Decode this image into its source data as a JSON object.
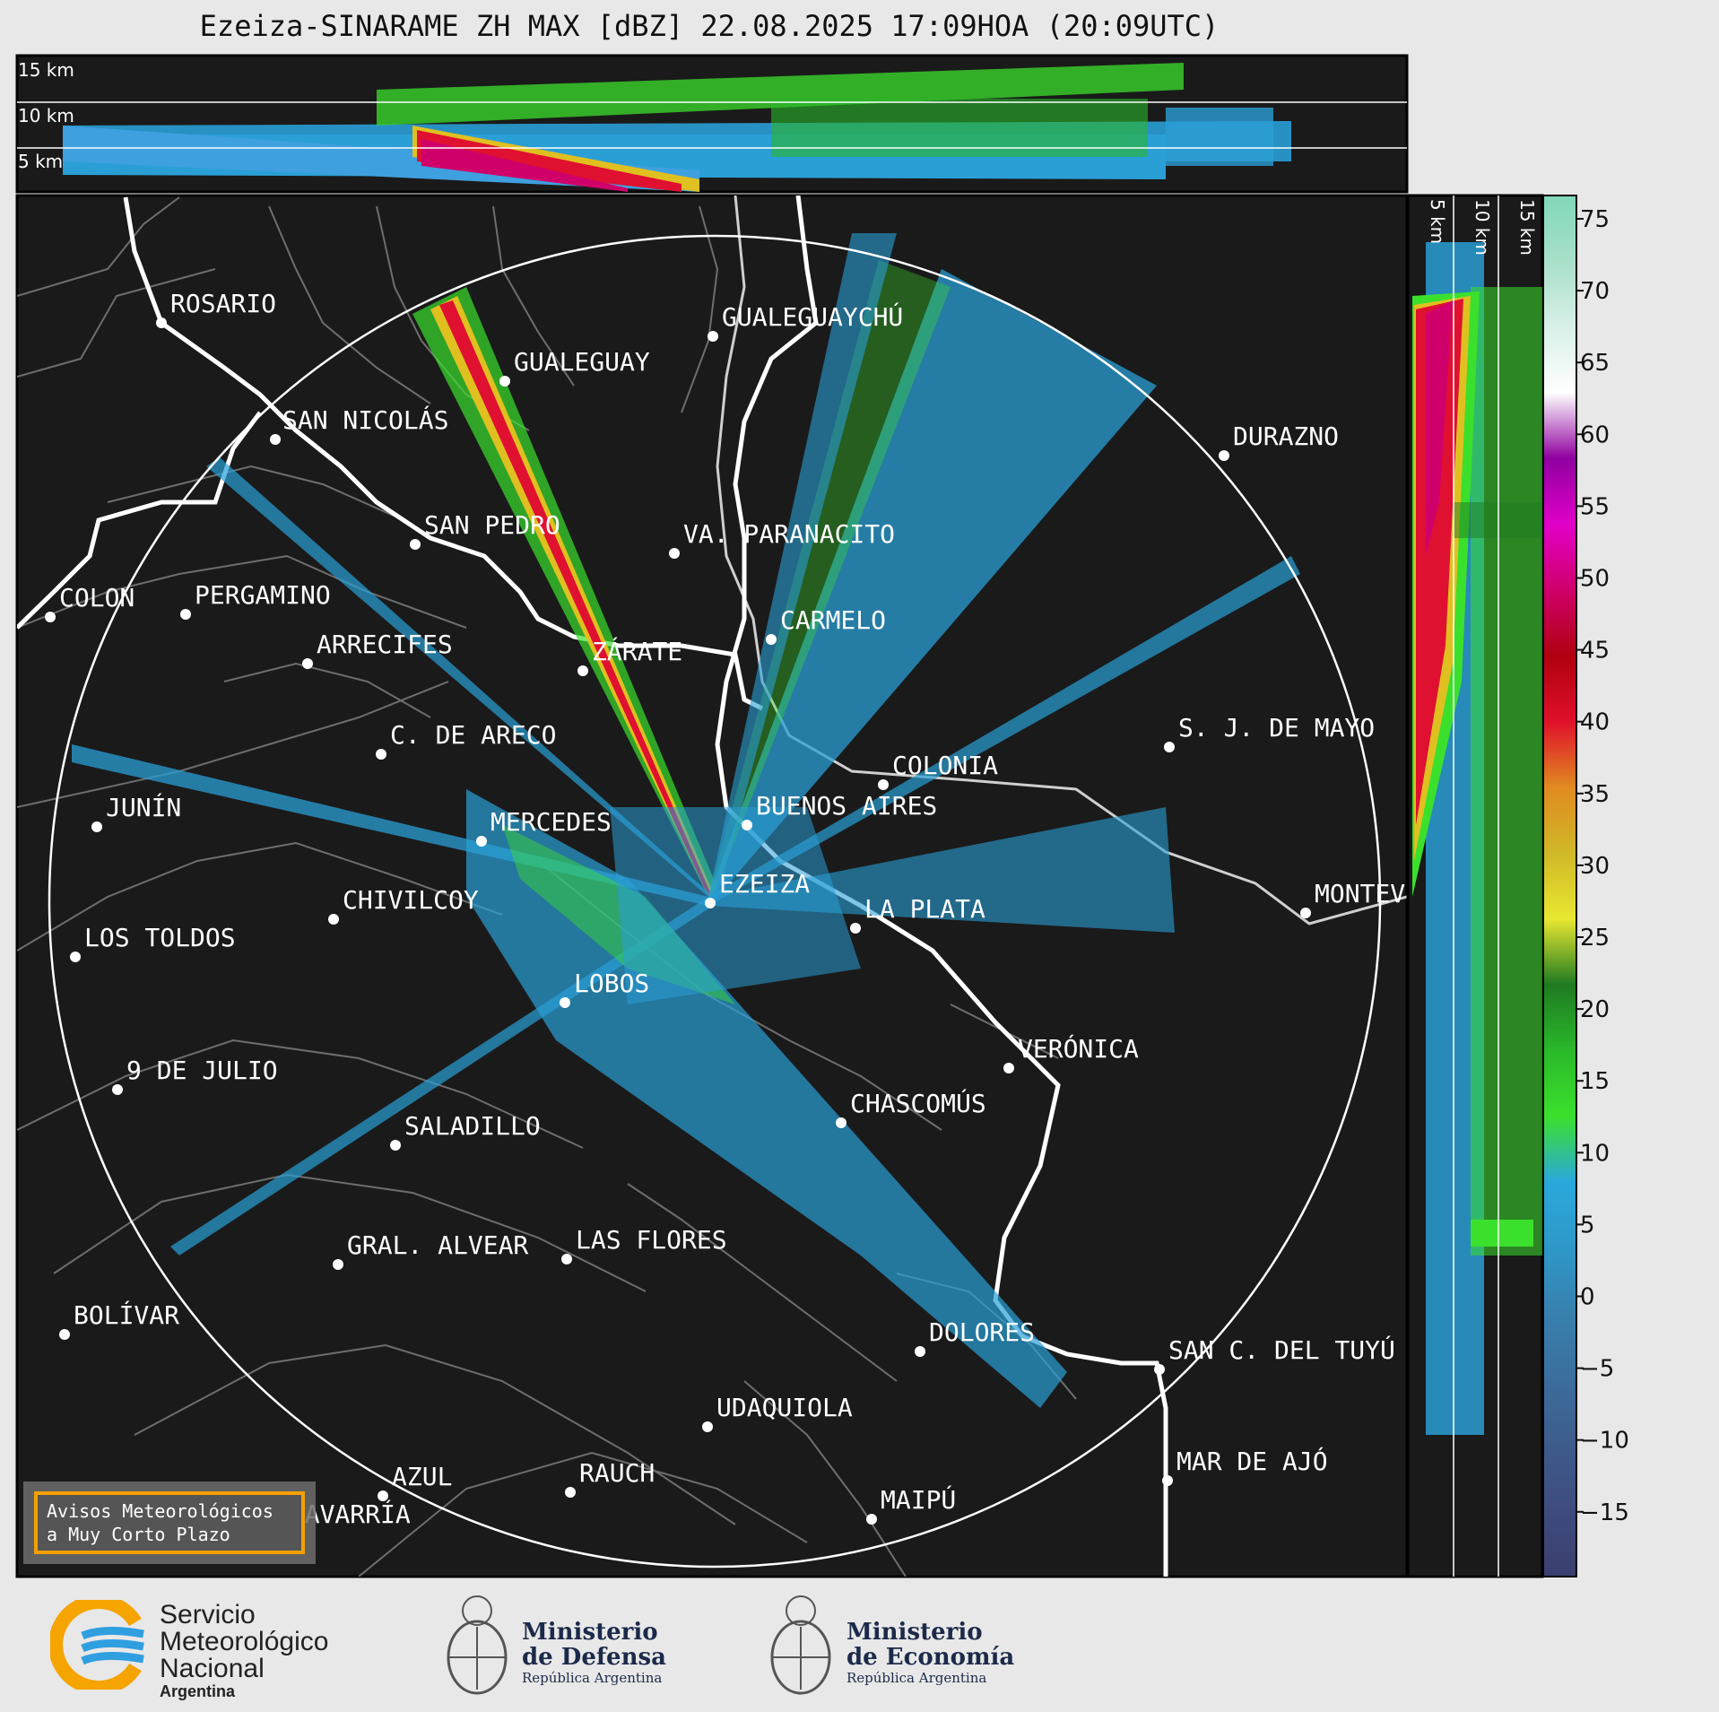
{
  "title": "Ezeiza-SINARAME ZH MAX [dBZ] 22.08.2025 17:09HOA (20:09UTC)",
  "altitude_labels_top": [
    "15 km",
    "10 km",
    "5 km"
  ],
  "altitude_labels_side": [
    "5 km",
    "10 km",
    "15 km"
  ],
  "colorbar": {
    "ticks": [
      "75",
      "70",
      "65",
      "60",
      "55",
      "50",
      "45",
      "40",
      "35",
      "30",
      "25",
      "20",
      "15",
      "10",
      "5",
      "0",
      "−5",
      "−10",
      "−15"
    ],
    "stops": [
      "#3a3f6e",
      "#3f4b7e",
      "#3d5c8c",
      "#3b6e9c",
      "#3880ae",
      "#2e98c8",
      "#2aa8dc",
      "#3be02c",
      "#2ab82a",
      "#1f7a22",
      "#e8e830",
      "#d0b828",
      "#e08a20",
      "#e0102a",
      "#b00010",
      "#d0006a",
      "#e000c8",
      "#9000a0",
      "#ffffff",
      "#d8f0e8",
      "#a8e0c8",
      "#80d8b8"
    ]
  },
  "cities": [
    {
      "name": "ROSARIO"
    },
    {
      "name": "GUALEGUAYCHÚ"
    },
    {
      "name": "GUALEGUAY"
    },
    {
      "name": "SAN NICOLÁS"
    },
    {
      "name": "DURAZNO"
    },
    {
      "name": "SAN PEDRO"
    },
    {
      "name": "VA. PARANACITO"
    },
    {
      "name": "COLON"
    },
    {
      "name": "PERGAMINO"
    },
    {
      "name": "CARMELO"
    },
    {
      "name": "ARRECIFES"
    },
    {
      "name": "ZÁRATE"
    },
    {
      "name": "C. DE ARECO"
    },
    {
      "name": "S. J. DE MAYO"
    },
    {
      "name": "COLONIA"
    },
    {
      "name": "JUNÍN"
    },
    {
      "name": "BUENOS AIRES"
    },
    {
      "name": "MERCEDES"
    },
    {
      "name": "EZEIZA"
    },
    {
      "name": "MONTEVIDEO"
    },
    {
      "name": "CHIVILCOY"
    },
    {
      "name": "LA PLATA"
    },
    {
      "name": "LOS TOLDOS"
    },
    {
      "name": "LOBOS"
    },
    {
      "name": "VERÓNICA"
    },
    {
      "name": "9 DE JULIO"
    },
    {
      "name": "CHASCOMÚS"
    },
    {
      "name": "SALADILLO"
    },
    {
      "name": "GRAL. ALVEAR"
    },
    {
      "name": "LAS FLORES"
    },
    {
      "name": "BOLÍVAR"
    },
    {
      "name": "DOLORES"
    },
    {
      "name": "SAN C. DEL TUYÚ"
    },
    {
      "name": "UDAQUIOLA"
    },
    {
      "name": "MAR DE AJÓ"
    },
    {
      "name": "AZUL"
    },
    {
      "name": "RAUCH"
    },
    {
      "name": "OLAVARRÍA"
    },
    {
      "name": "MAIPÚ"
    }
  ],
  "badge": {
    "line1": "Avisos Meteorológicos",
    "line2": "a Muy Corto Plazo"
  },
  "logos": {
    "smn": {
      "line1": "Servicio",
      "line2": "Meteorológico",
      "line3": "Nacional",
      "line4": "Argentina"
    },
    "defensa": {
      "line1": "Ministerio",
      "line2": "de Defensa",
      "line3": "República Argentina"
    },
    "economia": {
      "line1": "Ministerio",
      "line2": "de Economía",
      "line3": "República Argentina"
    }
  },
  "colors": {
    "map_bg": "#1a1a1a",
    "accent_badge": "#f5a000",
    "smn_blue": "#2f9fe0",
    "smn_orange": "#f5a400"
  }
}
